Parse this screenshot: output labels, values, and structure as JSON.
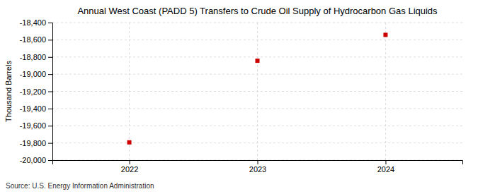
{
  "chart_data": {
    "type": "scatter",
    "title": "Annual West Coast (PADD 5) Transfers to Crude Oil Supply of Hydrocarbon Gas Liquids",
    "ylabel": "Thousand Barrels",
    "source": "Source: U.S. Energy Information Administration",
    "x": [
      2022,
      2023,
      2024
    ],
    "values": [
      -19793,
      -18844,
      -18543
    ],
    "color": "#cc0000",
    "marker": "square",
    "xlim": [
      2021.4,
      2024.6
    ],
    "xticks": [
      2022,
      2023,
      2024
    ],
    "ylim": [
      -20000,
      -18400
    ],
    "yticks": [
      {
        "value": -20000,
        "label": "-20,000"
      },
      {
        "value": -19800,
        "label": "-19,800"
      },
      {
        "value": -19600,
        "label": "-19,600"
      },
      {
        "value": -19400,
        "label": "-19,400"
      },
      {
        "value": -19200,
        "label": "-19,200"
      },
      {
        "value": -19000,
        "label": "-19,000"
      },
      {
        "value": -18800,
        "label": "-18,800"
      },
      {
        "value": -18600,
        "label": "-18,600"
      },
      {
        "value": -18400,
        "label": "-18,400"
      }
    ],
    "grid": true
  }
}
